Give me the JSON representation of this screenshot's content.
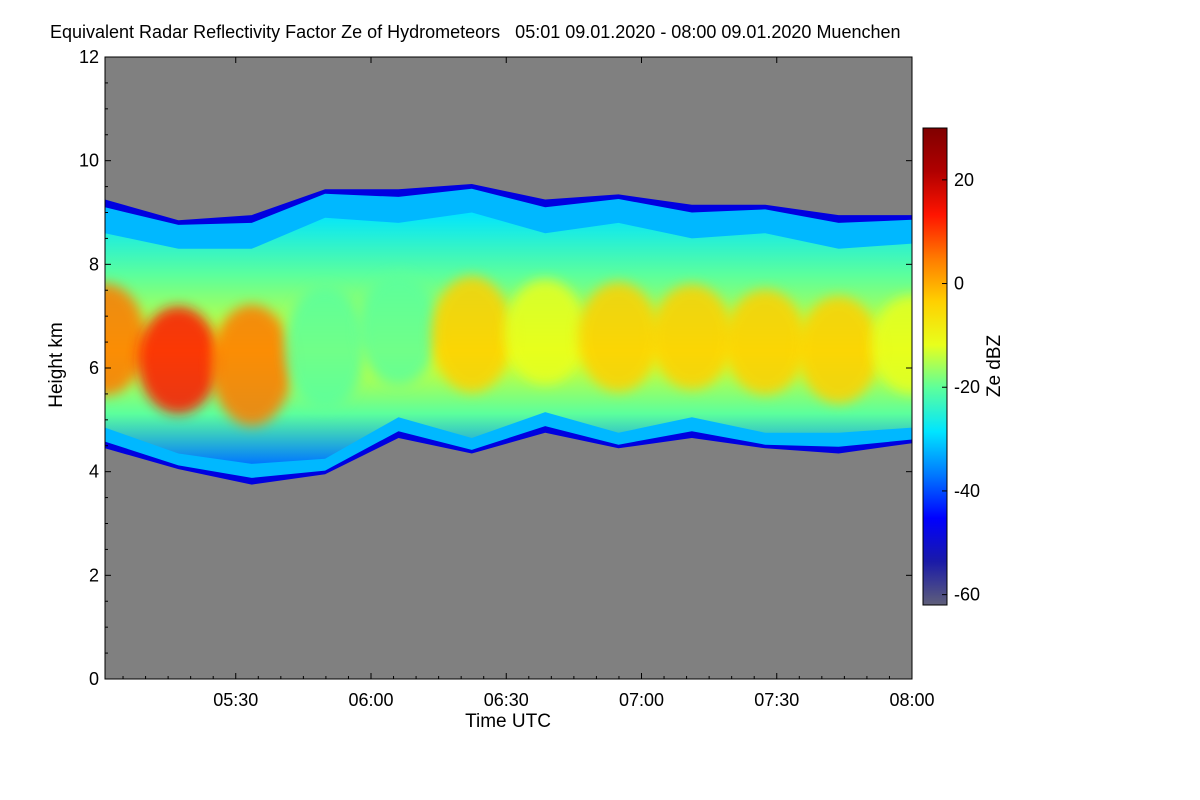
{
  "chart_data": {
    "type": "heatmap",
    "title": "Equivalent Radar Reflectivity Factor Ze of Hydrometeors   05:01 09.01.2020 - 08:00 09.01.2020 Muenchen",
    "xlabel": "Time UTC",
    "ylabel": "Height km",
    "colorbar_label": "Ze dBZ",
    "x_ticks": [
      "05:30",
      "06:00",
      "06:30",
      "07:00",
      "07:30",
      "08:00"
    ],
    "x_tick_minutes": [
      330,
      360,
      390,
      420,
      450,
      480
    ],
    "xlim_minutes": [
      301,
      480
    ],
    "y_ticks": [
      0,
      2,
      4,
      6,
      8,
      10,
      12
    ],
    "ylim": [
      0,
      12
    ],
    "colorbar_ticks": [
      20,
      0,
      -20,
      -40,
      -60
    ],
    "colorbar_range": [
      -62,
      30
    ],
    "background_color": "#808080",
    "colormap": [
      "#5f5f7a",
      "#1a1aa8",
      "#0000ff",
      "#0078ff",
      "#00e5ff",
      "#5cff9c",
      "#e8ff1c",
      "#ffd000",
      "#ff7a00",
      "#ff1400",
      "#b00000",
      "#800000"
    ],
    "cloud_layer": {
      "top_km": [
        9.3,
        8.8,
        9.0,
        9.4,
        9.5,
        9.5,
        9.3,
        9.3,
        9.2,
        9.1,
        9.0,
        8.9
      ],
      "base_km": [
        4.4,
        4.1,
        3.7,
        4.0,
        4.6,
        4.4,
        4.7,
        4.5,
        4.6,
        4.5,
        4.3,
        4.6
      ],
      "core_ze_dbz": [
        5,
        10,
        8,
        -18,
        -22,
        -5,
        -8,
        -6,
        -4,
        -3,
        -5,
        -8
      ]
    }
  }
}
